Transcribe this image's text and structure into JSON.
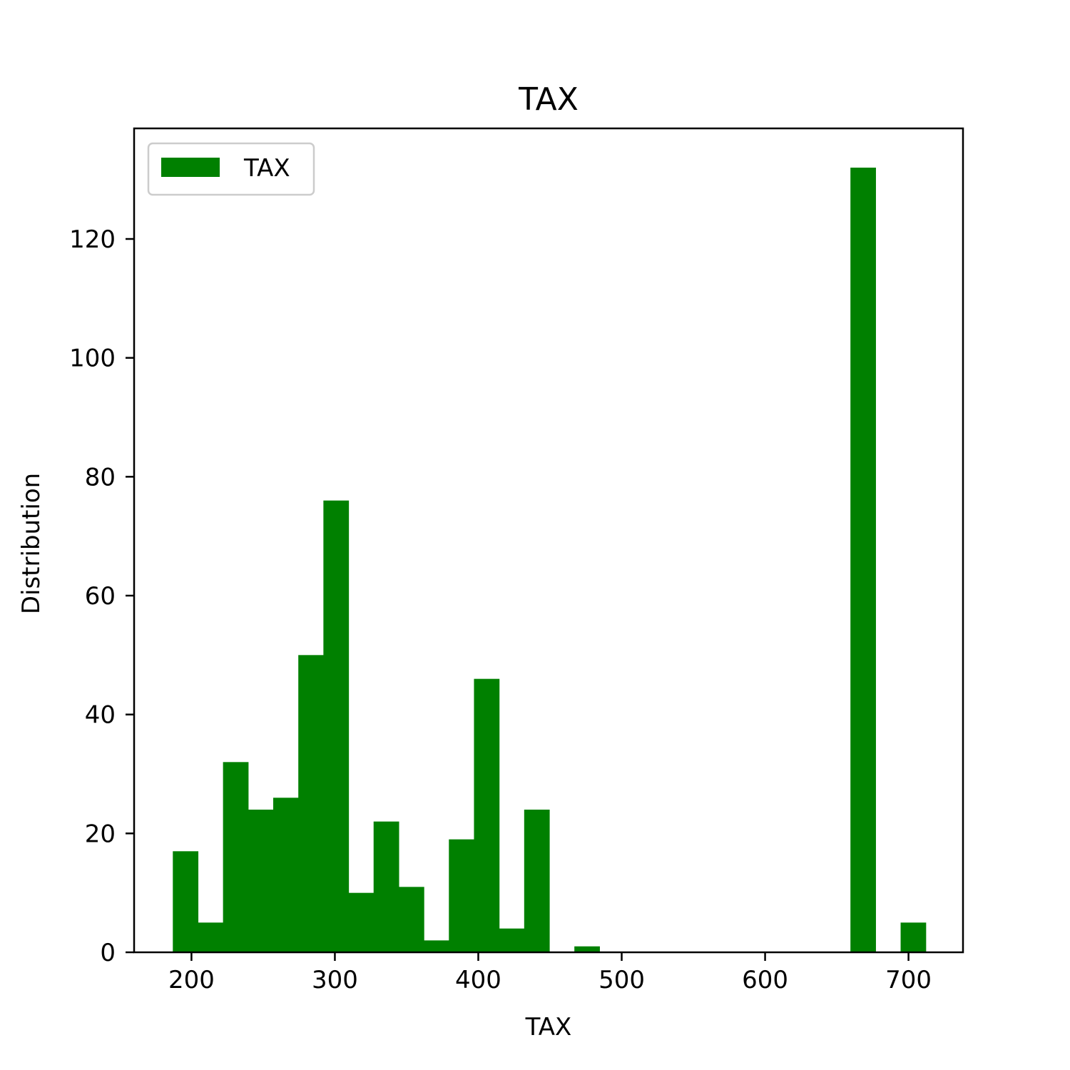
{
  "chart_data": {
    "type": "bar",
    "title": "TAX",
    "xlabel": "TAX",
    "ylabel": "Distribution",
    "xlim": [
      160,
      738
    ],
    "ylim": [
      0,
      138.6
    ],
    "x_ticks": [
      200,
      300,
      400,
      500,
      600,
      700
    ],
    "y_ticks": [
      0,
      20,
      40,
      60,
      80,
      100,
      120
    ],
    "grid": false,
    "legend": {
      "position": "top-left",
      "entries": [
        "TAX"
      ]
    },
    "series": [
      {
        "name": "TAX",
        "color": "#008000",
        "bin_width": 17.5,
        "bins": [
          {
            "start": 187,
            "count": 17
          },
          {
            "start": 204.5,
            "count": 5
          },
          {
            "start": 222,
            "count": 32
          },
          {
            "start": 239.5,
            "count": 24
          },
          {
            "start": 257,
            "count": 26
          },
          {
            "start": 274.5,
            "count": 50
          },
          {
            "start": 292,
            "count": 76
          },
          {
            "start": 309.5,
            "count": 10
          },
          {
            "start": 327,
            "count": 22
          },
          {
            "start": 344.5,
            "count": 11
          },
          {
            "start": 362,
            "count": 2
          },
          {
            "start": 379.5,
            "count": 19
          },
          {
            "start": 397,
            "count": 46
          },
          {
            "start": 414.5,
            "count": 4
          },
          {
            "start": 432,
            "count": 24
          },
          {
            "start": 449.5,
            "count": 0
          },
          {
            "start": 467,
            "count": 1
          },
          {
            "start": 484.5,
            "count": 0
          },
          {
            "start": 502,
            "count": 0
          },
          {
            "start": 519.5,
            "count": 0
          },
          {
            "start": 537,
            "count": 0
          },
          {
            "start": 554.5,
            "count": 0
          },
          {
            "start": 572,
            "count": 0
          },
          {
            "start": 589.5,
            "count": 0
          },
          {
            "start": 607,
            "count": 0
          },
          {
            "start": 624.5,
            "count": 0
          },
          {
            "start": 642,
            "count": 0
          },
          {
            "start": 659.5,
            "count": 132
          },
          {
            "start": 677,
            "count": 0
          },
          {
            "start": 694.5,
            "count": 5
          }
        ]
      }
    ]
  }
}
